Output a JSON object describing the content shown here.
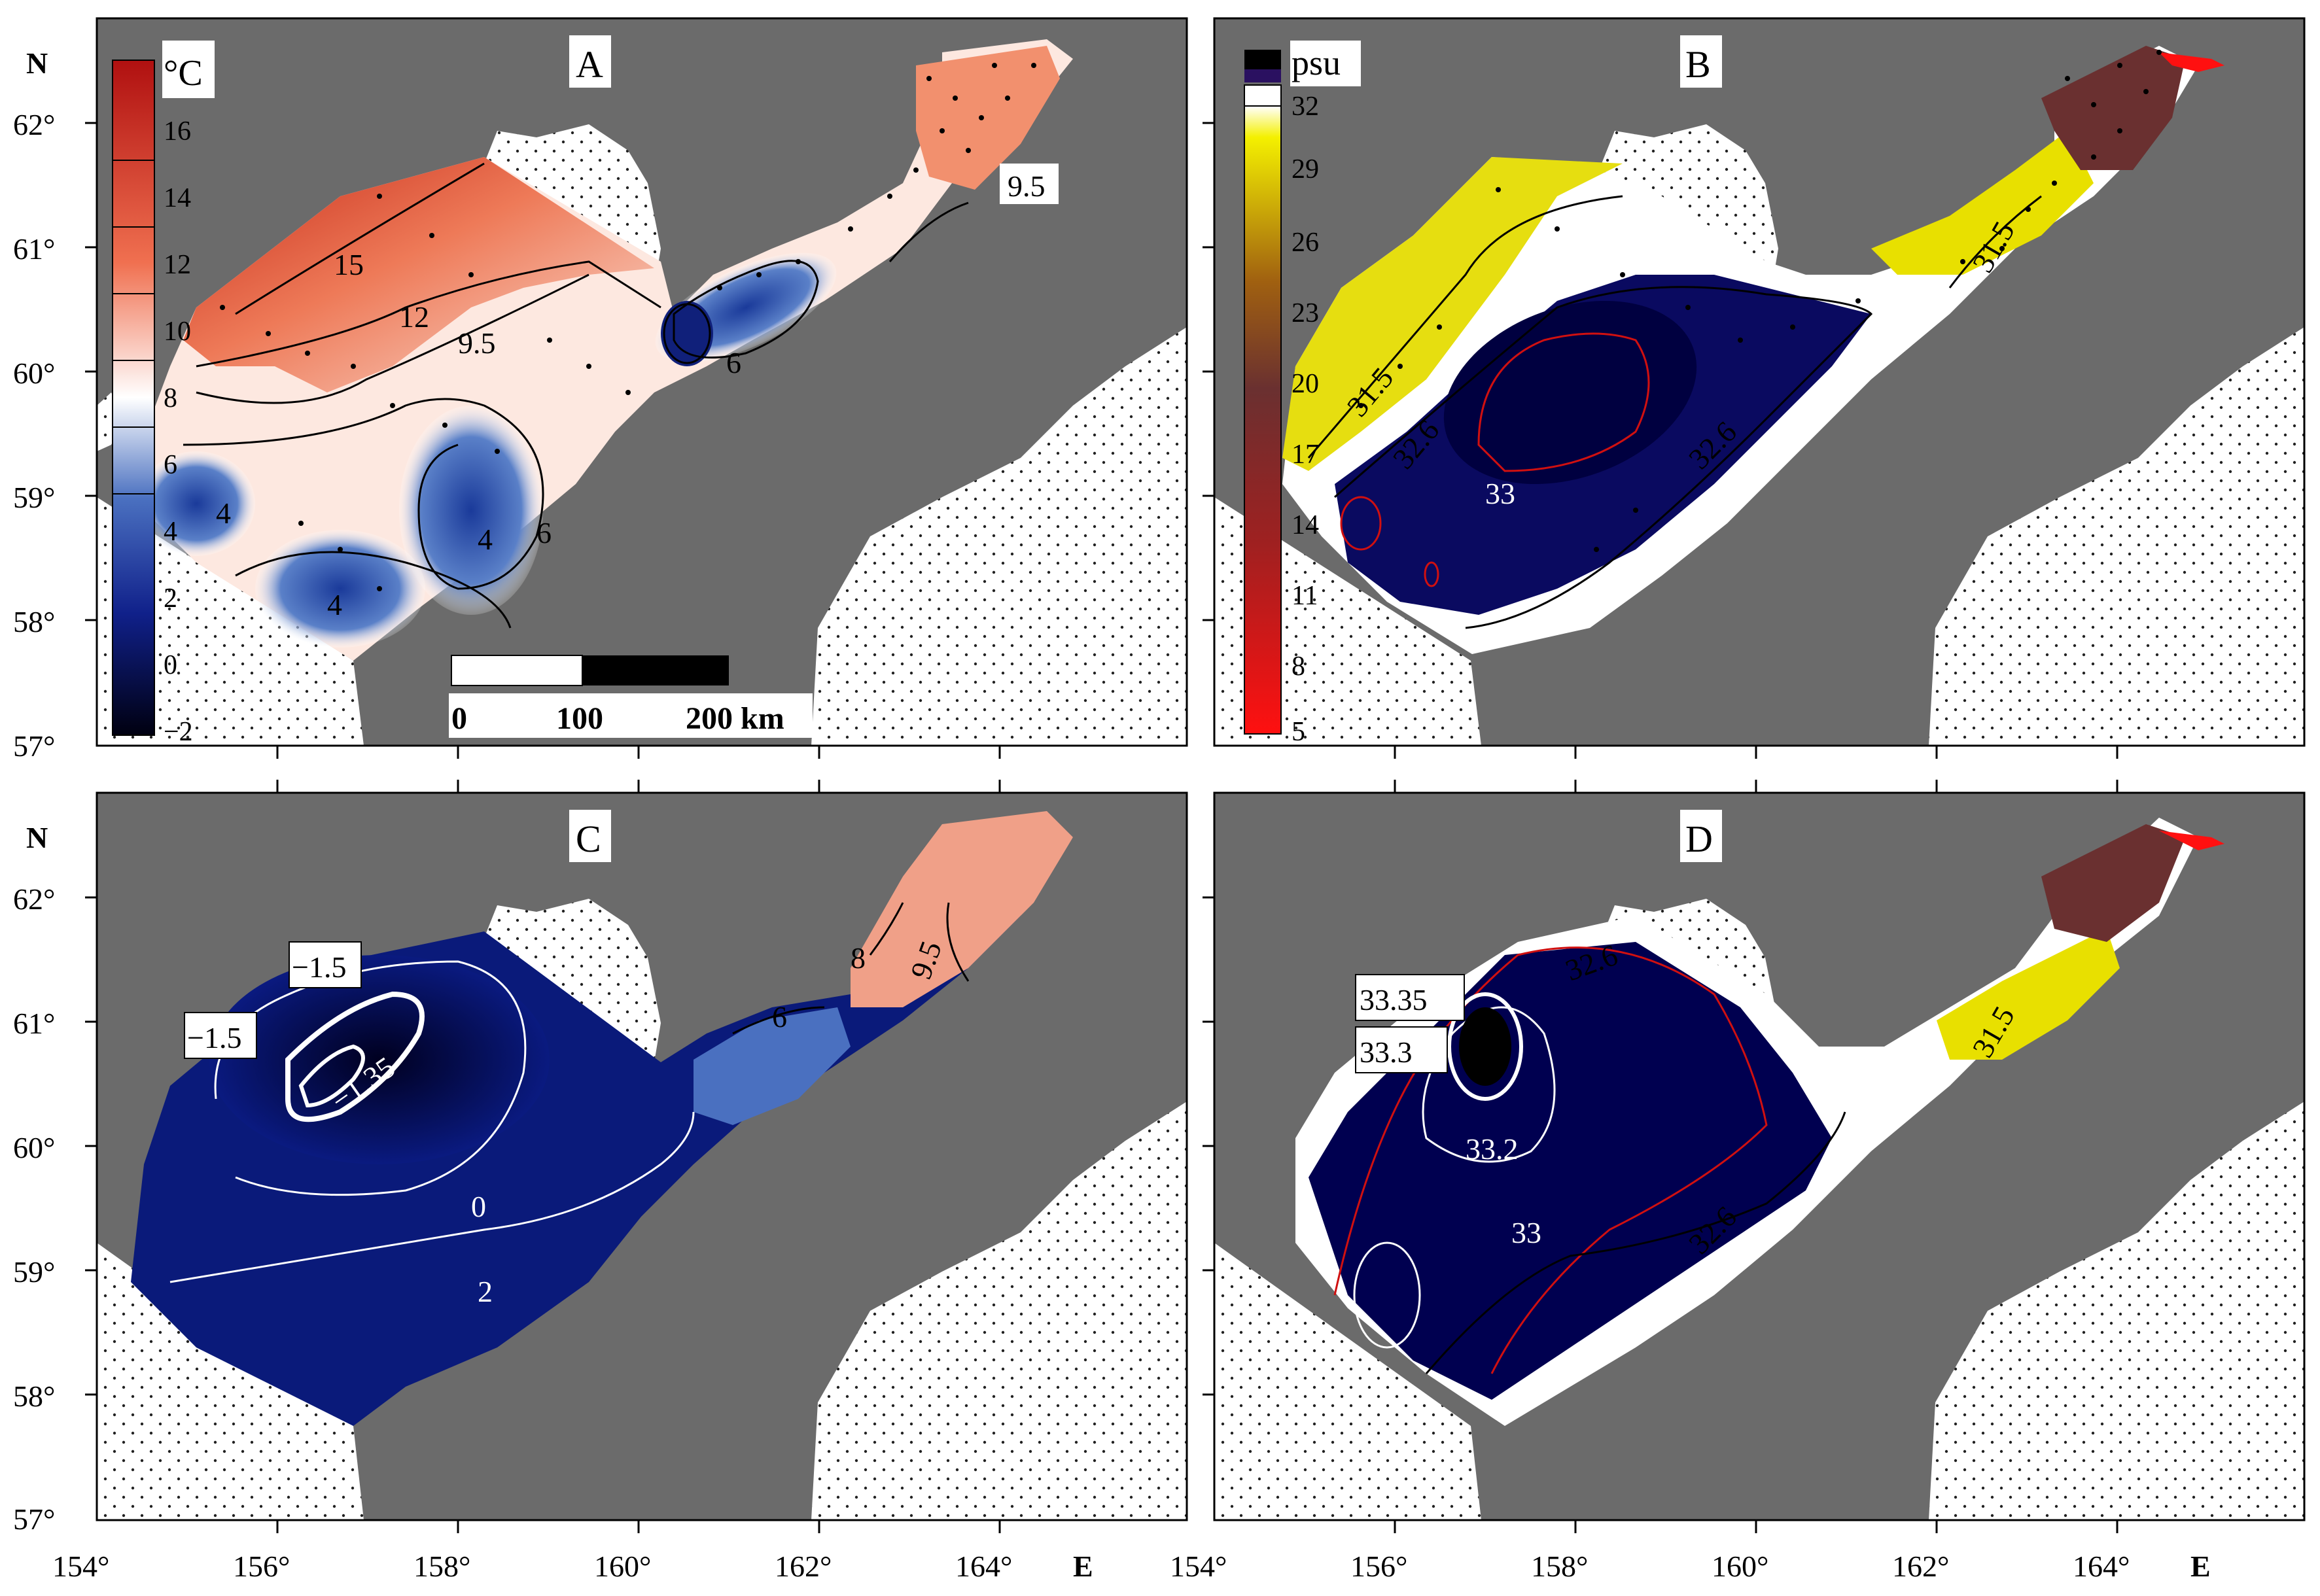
{
  "axes": {
    "lat_labels": [
      "62°",
      "61°",
      "60°",
      "59°",
      "58°",
      "57°"
    ],
    "lon_labels": [
      "154°",
      "156°",
      "158°",
      "160°",
      "162°",
      "164°"
    ],
    "north": "N",
    "east": "E"
  },
  "panels": {
    "A": {
      "label": "A"
    },
    "B": {
      "label": "B"
    },
    "C": {
      "label": "C"
    },
    "D": {
      "label": "D"
    }
  },
  "temperature_legend": {
    "unit": "°C",
    "ticks": [
      "16",
      "14",
      "12",
      "10",
      "8",
      "6",
      "4",
      "2",
      "0",
      "−2"
    ]
  },
  "salinity_legend": {
    "unit": "psu",
    "ticks": [
      "32",
      "29",
      "26",
      "23",
      "20",
      "17",
      "14",
      "11",
      "8",
      "5"
    ]
  },
  "scale_bar": {
    "labels": [
      "0",
      "100",
      "200 km"
    ]
  },
  "contour_labels": {
    "A": [
      "15",
      "12",
      "9.5",
      "6",
      "4",
      "4",
      "6",
      "4",
      "9.5"
    ],
    "B": [
      "31.5",
      "32.6",
      "33",
      "32.6",
      "31.5"
    ],
    "C": [
      "−1.5",
      "−1.5",
      "−1.35",
      "0",
      "2",
      "6",
      "8",
      "9.5"
    ],
    "D": [
      "33.35",
      "33.3",
      "33.2",
      "33",
      "32.6",
      "32.6",
      "31.5"
    ]
  },
  "colors": {
    "land": "#6b6b6b",
    "warm": "#c8321e",
    "cold": "#0a0a50",
    "high_salinity": "#000050",
    "low_salinity_yellow": "#e8e000",
    "contour_red": "#d01010"
  }
}
